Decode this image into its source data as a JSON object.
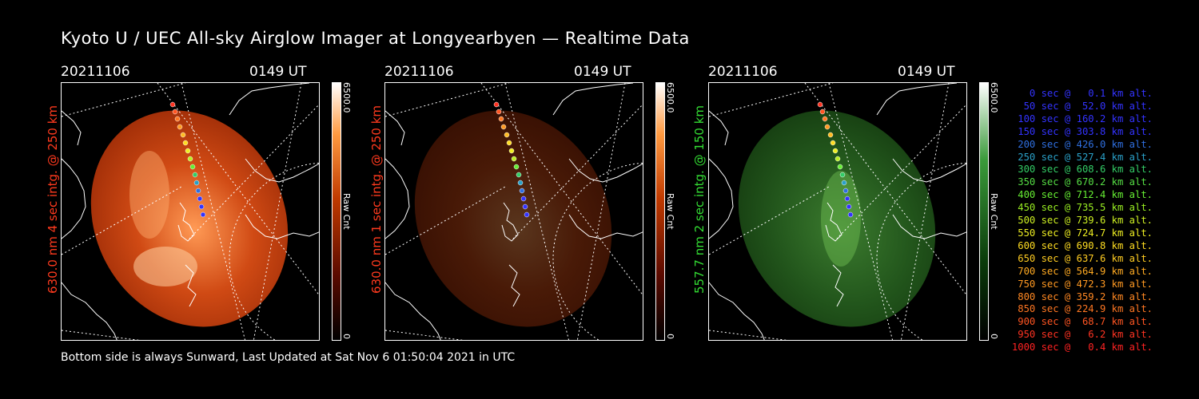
{
  "title": "Kyoto U / UEC All-sky Airglow Imager at Longyearbyen — Realtime Data",
  "footer": "Bottom side is always Sunward, Last Updated at Sat Nov  6 01:50:04 2021 in UTC",
  "panels": [
    {
      "date": "20211106",
      "time": "0149 UT",
      "ylabel": "630.0 nm 4 sec intg. @ 250 km",
      "ylabel_color": "#ff3a1e",
      "cb_max": "6500.0",
      "cb_min": "0",
      "cb_label": "Raw Cnt",
      "colormap": "red",
      "brightness": 1.0
    },
    {
      "date": "20211106",
      "time": "0149 UT",
      "ylabel": "630.0 nm 1 sec intg. @ 250 km",
      "ylabel_color": "#ff3a1e",
      "cb_max": "6500.0",
      "cb_min": "0",
      "cb_label": "Raw Cnt",
      "colormap": "red",
      "brightness": 0.35
    },
    {
      "date": "20211106",
      "time": "0149 UT",
      "ylabel": "557.7 nm 2 sec intg. @ 150 km",
      "ylabel_color": "#33dd33",
      "cb_max": "6500.0",
      "cb_min": "0",
      "cb_label": "Raw Cnt",
      "colormap": "green",
      "brightness": 0.8
    }
  ],
  "legend": [
    {
      "text": "0 sec @   0.1 km alt.",
      "color": "#3333ff"
    },
    {
      "text": "50 sec @  52.0 km alt.",
      "color": "#3333ff"
    },
    {
      "text": "100 sec @ 160.2 km alt.",
      "color": "#3333ff"
    },
    {
      "text": "150 sec @ 303.8 km alt.",
      "color": "#3333ff"
    },
    {
      "text": "200 sec @ 426.0 km alt.",
      "color": "#2f6fe0"
    },
    {
      "text": "250 sec @ 527.4 km alt.",
      "color": "#2aa0c8"
    },
    {
      "text": "300 sec @ 608.6 km alt.",
      "color": "#33cc66"
    },
    {
      "text": "350 sec @ 670.2 km alt.",
      "color": "#55dd44"
    },
    {
      "text": "400 sec @ 712.4 km alt.",
      "color": "#66ee33"
    },
    {
      "text": "450 sec @ 735.5 km alt.",
      "color": "#99ee22"
    },
    {
      "text": "500 sec @ 739.6 km alt.",
      "color": "#ccee22"
    },
    {
      "text": "550 sec @ 724.7 km alt.",
      "color": "#eeee22"
    },
    {
      "text": "600 sec @ 690.8 km alt.",
      "color": "#ffdd22"
    },
    {
      "text": "650 sec @ 637.6 km alt.",
      "color": "#ffcc22"
    },
    {
      "text": "700 sec @ 564.9 km alt.",
      "color": "#ffaa22"
    },
    {
      "text": "750 sec @ 472.3 km alt.",
      "color": "#ff9922"
    },
    {
      "text": "800 sec @ 359.2 km alt.",
      "color": "#ff8822"
    },
    {
      "text": "850 sec @ 224.9 km alt.",
      "color": "#ff7722"
    },
    {
      "text": "900 sec @  68.7 km alt.",
      "color": "#ff5522"
    },
    {
      "text": "950 sec @   6.2 km alt.",
      "color": "#ff3322"
    },
    {
      "text": "1000 sec @   0.4 km alt.",
      "color": "#ff2222"
    }
  ]
}
